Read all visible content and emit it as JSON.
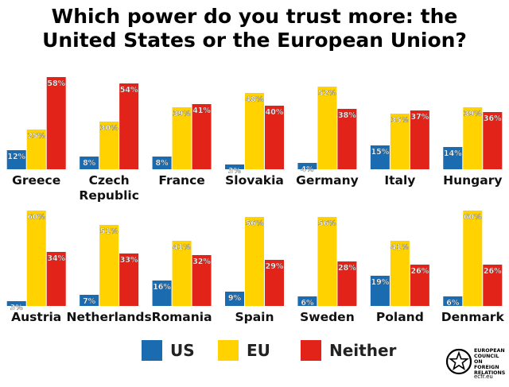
{
  "title_line1": "Which power do you trust more: the",
  "title_line2": "United States or the European Union?",
  "legend": {
    "us": "US",
    "eu": "EU",
    "neither": "Neither"
  },
  "colors": {
    "us": "#1a6bb0",
    "eu": "#ffd200",
    "neither": "#e2231a"
  },
  "logo": {
    "lines": [
      "EUROPEAN",
      "COUNCIL",
      "ON FOREIGN",
      "RELATIONS"
    ],
    "url": "ecfr.eu"
  },
  "chart_data": {
    "type": "bar",
    "title": "Which power do you trust more: the United States or the European Union?",
    "series": [
      {
        "name": "US",
        "values": [
          12,
          8,
          8,
          3,
          4,
          15,
          14,
          3,
          7,
          16,
          9,
          6,
          19,
          6
        ]
      },
      {
        "name": "EU",
        "values": [
          25,
          30,
          39,
          48,
          52,
          35,
          39,
          60,
          51,
          41,
          56,
          56,
          41,
          60
        ]
      },
      {
        "name": "Neither",
        "values": [
          58,
          54,
          41,
          40,
          38,
          37,
          36,
          34,
          33,
          32,
          29,
          28,
          26,
          26
        ]
      }
    ],
    "categories": [
      "Greece",
      "Czech Republic",
      "France",
      "Slovakia",
      "Germany",
      "Italy",
      "Hungary",
      "Austria",
      "Netherlands",
      "Romania",
      "Spain",
      "Sweden",
      "Poland",
      "Denmark"
    ],
    "unit": "%",
    "legend_position": "bottom",
    "grid": false
  }
}
